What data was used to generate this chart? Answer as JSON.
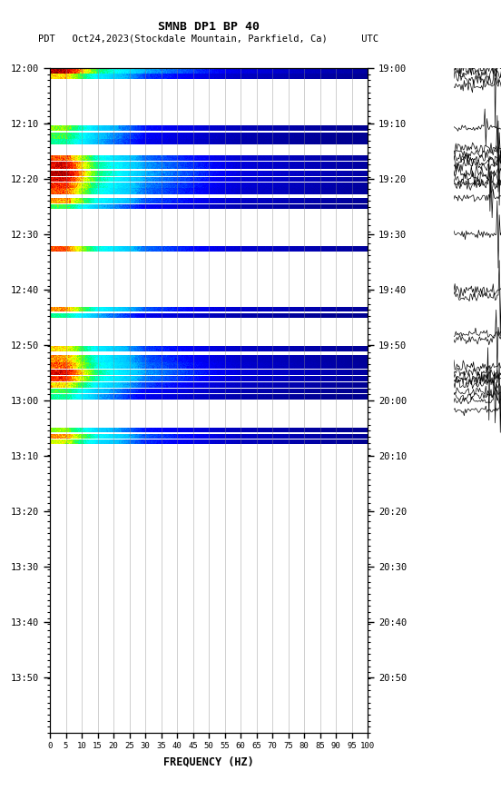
{
  "title_line1": "SMNB DP1 BP 40",
  "title_line2": "PDT   Oct24,2023(Stockdale Mountain, Parkfield, Ca)      UTC",
  "xlabel": "FREQUENCY (HZ)",
  "freq_ticks": [
    0,
    5,
    10,
    15,
    20,
    25,
    30,
    35,
    40,
    45,
    50,
    55,
    60,
    65,
    70,
    75,
    80,
    85,
    90,
    95,
    100
  ],
  "left_time_labels": [
    "12:00",
    "12:10",
    "12:20",
    "12:30",
    "12:40",
    "12:50",
    "13:00",
    "13:10",
    "13:20",
    "13:30",
    "13:40",
    "13:50"
  ],
  "right_time_labels": [
    "19:00",
    "19:10",
    "19:20",
    "19:30",
    "19:40",
    "19:50",
    "20:00",
    "20:10",
    "20:20",
    "20:30",
    "20:40",
    "20:50"
  ],
  "background_color": "#ffffff",
  "grid_color": "#888888",
  "text_color": "#000000",
  "usgs_green": "#1a6b3c",
  "n_freq": 400,
  "n_time": 660,
  "total_minutes": 110,
  "active_minutes": 62
}
